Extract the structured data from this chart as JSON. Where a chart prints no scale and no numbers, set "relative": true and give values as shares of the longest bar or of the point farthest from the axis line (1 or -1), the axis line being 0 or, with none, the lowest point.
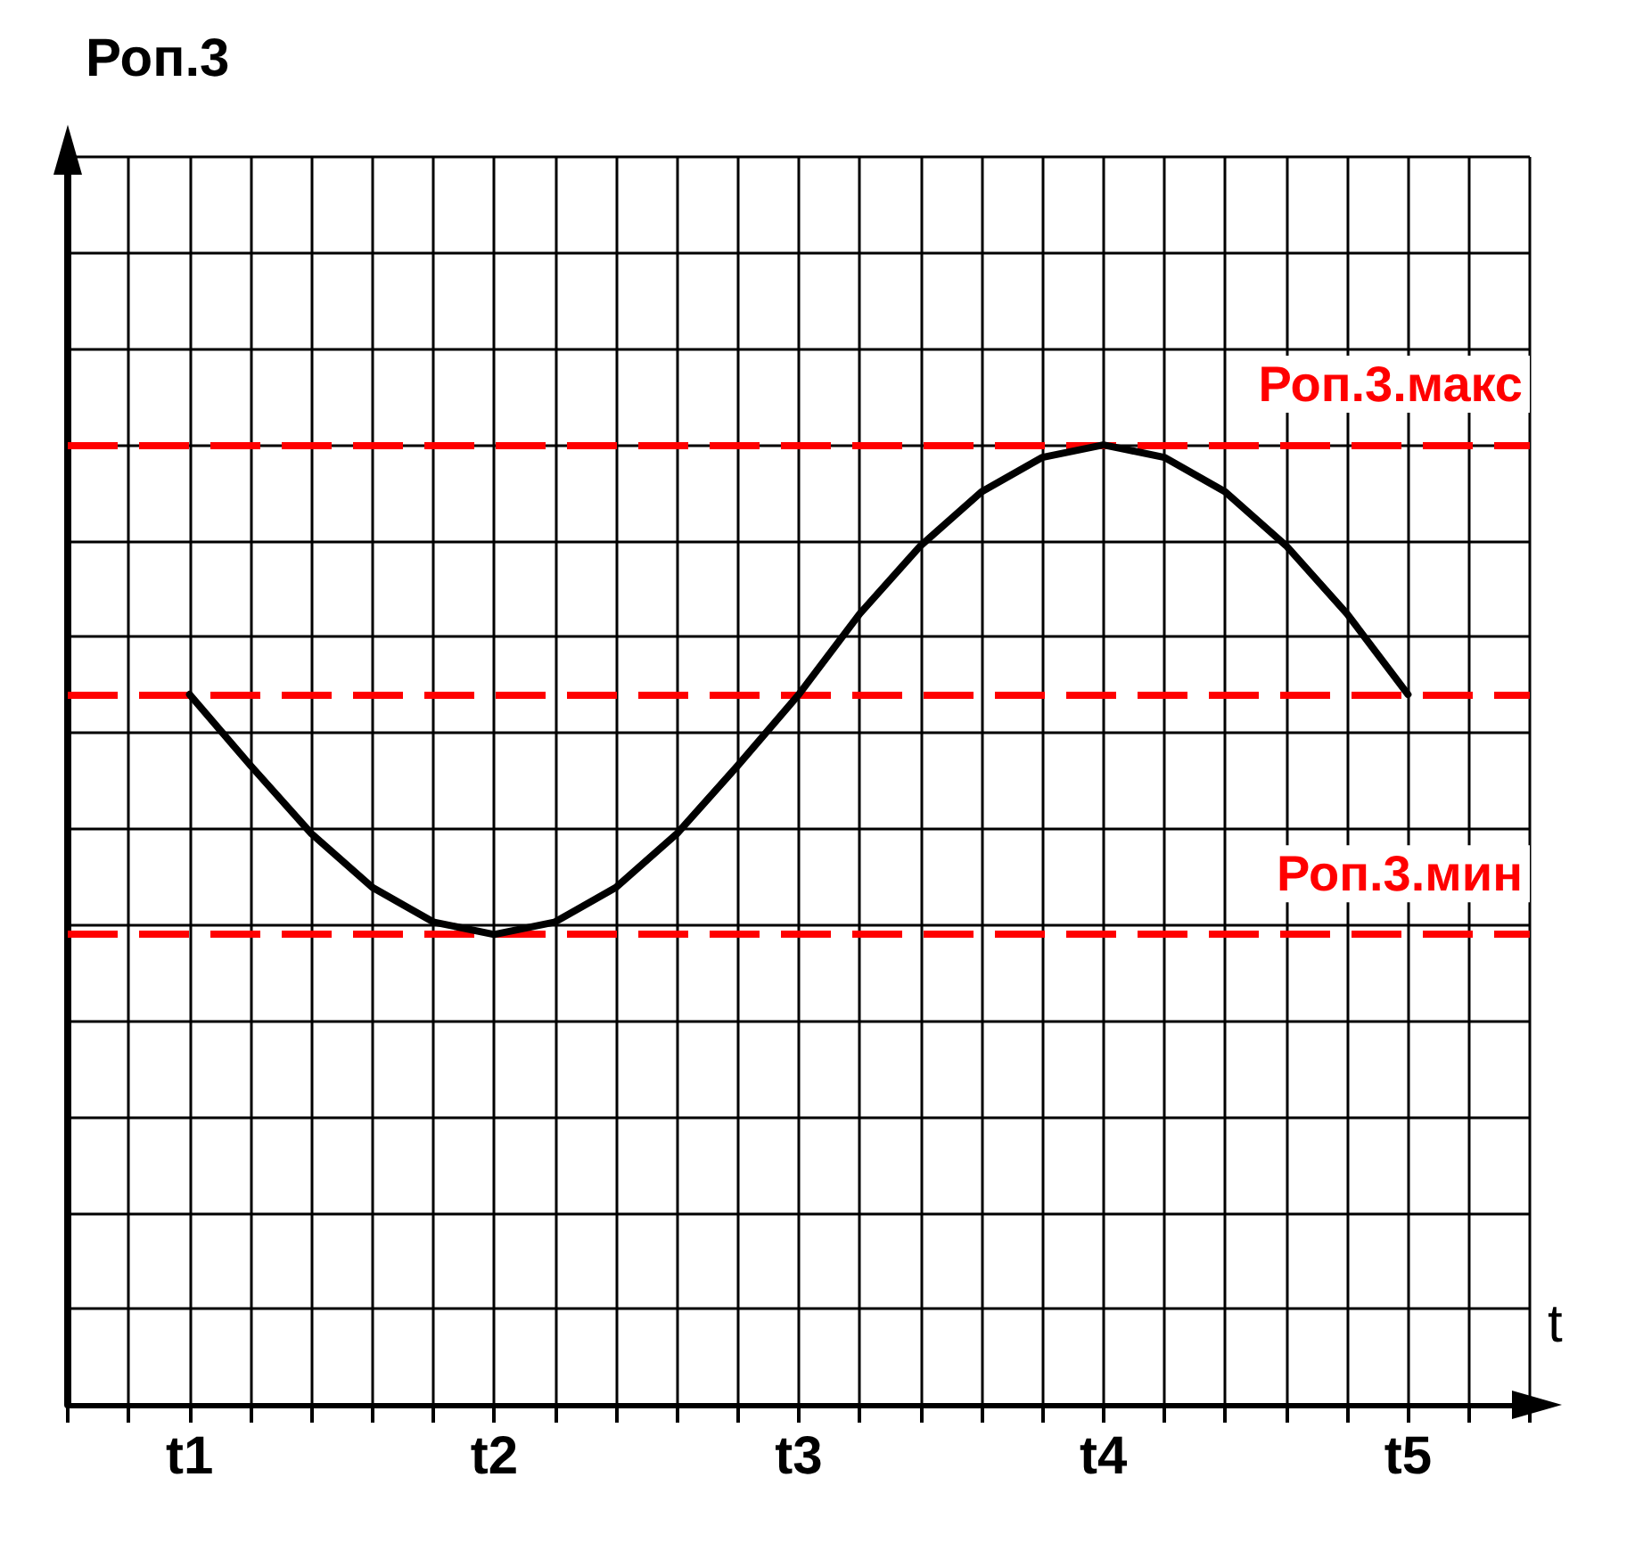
{
  "chart_data": {
    "type": "line",
    "annotations": [
      "Роп.3"
    ],
    "xlabel": "t",
    "relative": true,
    "grid": true,
    "marker": "none",
    "line_style": "solid",
    "tick_labels": "x",
    "categories": [
      null,
      null,
      "t1",
      null,
      null,
      null,
      null,
      "t2",
      null,
      null,
      null,
      null,
      "t3",
      null,
      null,
      null,
      null,
      "t4",
      null,
      null,
      null,
      null,
      "t5",
      null,
      null
    ],
    "series": [
      {
        "color": "#000000",
        "values": [
          null,
          null,
          0.74,
          0.666,
          0.595,
          0.539,
          0.503,
          0.49,
          0.503,
          0.539,
          0.595,
          0.666,
          0.74,
          0.824,
          0.895,
          0.951,
          0.987,
          1.0,
          0.987,
          0.951,
          0.895,
          0.824,
          0.74,
          null,
          null
        ]
      }
    ],
    "ref_lines": [
      {
        "axis": "y",
        "value": 1.0,
        "label": "Роп.3.макс",
        "color": "#ff0000",
        "line_style": "dashed"
      },
      {
        "axis": "y",
        "value": 0.74,
        "label": null,
        "color": "#ff0000",
        "line_style": "dashed"
      },
      {
        "axis": "y",
        "value": 0.49,
        "label": "Роп.3.мин",
        "color": "#ff0000",
        "line_style": "dashed"
      }
    ]
  }
}
